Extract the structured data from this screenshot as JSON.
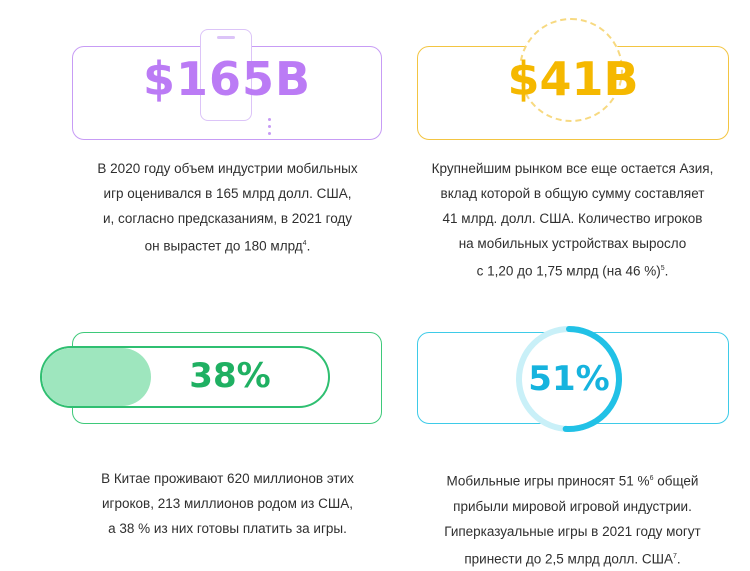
{
  "stats": [
    {
      "value": "$165B",
      "color": "#bb7bf5",
      "icon": "phone-icon",
      "lines": [
        "В 2020 году объем индустрии мобильных",
        "игр оценивался в 165 млрд долл. США,",
        "и, согласно предсказаниям, в 2021 году",
        "он вырастет до 180 млрд"
      ],
      "footnote": "4"
    },
    {
      "value": "$41B",
      "color": "#f5b800",
      "icon": "coin-icon",
      "lines": [
        "Крупнейшим рынком все еще остается Азия,",
        "вклад которой в общую сумму составляет",
        "41 млрд. долл. США. Количество игроков",
        "на мобильных устройствах выросло",
        "с 1,20 до 1,75 млрд (на 46 %)"
      ],
      "footnote": "5"
    },
    {
      "value": "38%",
      "color": "#1fb062",
      "progress": 0.38,
      "lines": [
        "В Китае проживают 620 миллионов этих",
        "игроков, 213 миллионов родом из США,",
        "а 38 % из них готовы платить за игры."
      ]
    },
    {
      "value": "51%",
      "color": "#16b3de",
      "progress": 0.51,
      "lines": [
        "Мобильные игры приносят 51 %",
        "прибыли мировой игровой индустрии.",
        "Гиперказуальные игры в 2021 году могут",
        "принести до 2,5 млрд долл. США"
      ],
      "inline_footnote": "6",
      "line1_tail": " общей",
      "footnote": "7"
    }
  ]
}
